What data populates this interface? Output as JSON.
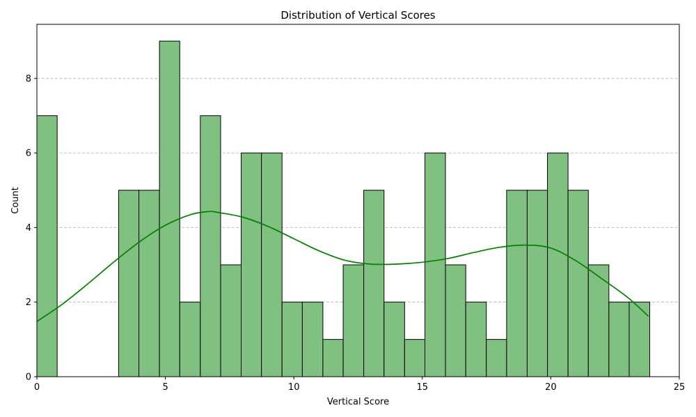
{
  "chart_data": {
    "type": "bar",
    "title": "Distribution of Vertical Scores",
    "xlabel": "Vertical Score",
    "ylabel": "Count",
    "xlim": [
      0,
      25
    ],
    "ylim": [
      0,
      9.45
    ],
    "xticks": [
      "0",
      "5",
      "10",
      "15",
      "20",
      "25"
    ],
    "xtick_values": [
      0,
      5,
      10,
      15,
      20,
      25
    ],
    "yticks": [
      "0",
      "2",
      "4",
      "6",
      "8"
    ],
    "ytick_values": [
      0,
      2,
      4,
      6,
      8
    ],
    "grid": "horizontal dashed",
    "bin_edges": [
      0,
      0.79,
      1.59,
      2.38,
      3.18,
      3.97,
      4.77,
      5.56,
      6.36,
      7.15,
      7.95,
      8.74,
      9.54,
      10.33,
      11.13,
      11.92,
      12.72,
      13.51,
      14.31,
      15.1,
      15.9,
      16.69,
      17.49,
      18.28,
      19.08,
      19.87,
      20.67,
      21.46,
      22.26,
      23.05,
      23.85
    ],
    "counts": [
      7,
      0,
      0,
      0,
      5,
      5,
      9,
      2,
      7,
      3,
      6,
      6,
      2,
      2,
      1,
      3,
      5,
      2,
      1,
      6,
      3,
      2,
      1,
      5,
      5,
      6,
      5,
      3,
      2,
      2
    ],
    "kde": {
      "x": [
        0,
        1,
        2,
        3,
        4,
        5,
        6,
        6.7,
        7,
        8,
        9,
        10,
        11,
        12,
        13,
        14,
        15,
        16,
        17,
        18,
        19,
        20,
        21,
        22,
        23,
        23.8
      ],
      "y": [
        1.48,
        1.95,
        2.5,
        3.08,
        3.62,
        4.06,
        4.35,
        4.43,
        4.41,
        4.28,
        4.03,
        3.7,
        3.37,
        3.12,
        3.02,
        3.02,
        3.07,
        3.17,
        3.33,
        3.47,
        3.53,
        3.45,
        3.1,
        2.62,
        2.12,
        1.62
      ]
    },
    "colors": {
      "bar_fill": "#80c080",
      "bar_edge": "#000000",
      "kde_line": "#008000",
      "grid": "#b0b0b0"
    }
  }
}
